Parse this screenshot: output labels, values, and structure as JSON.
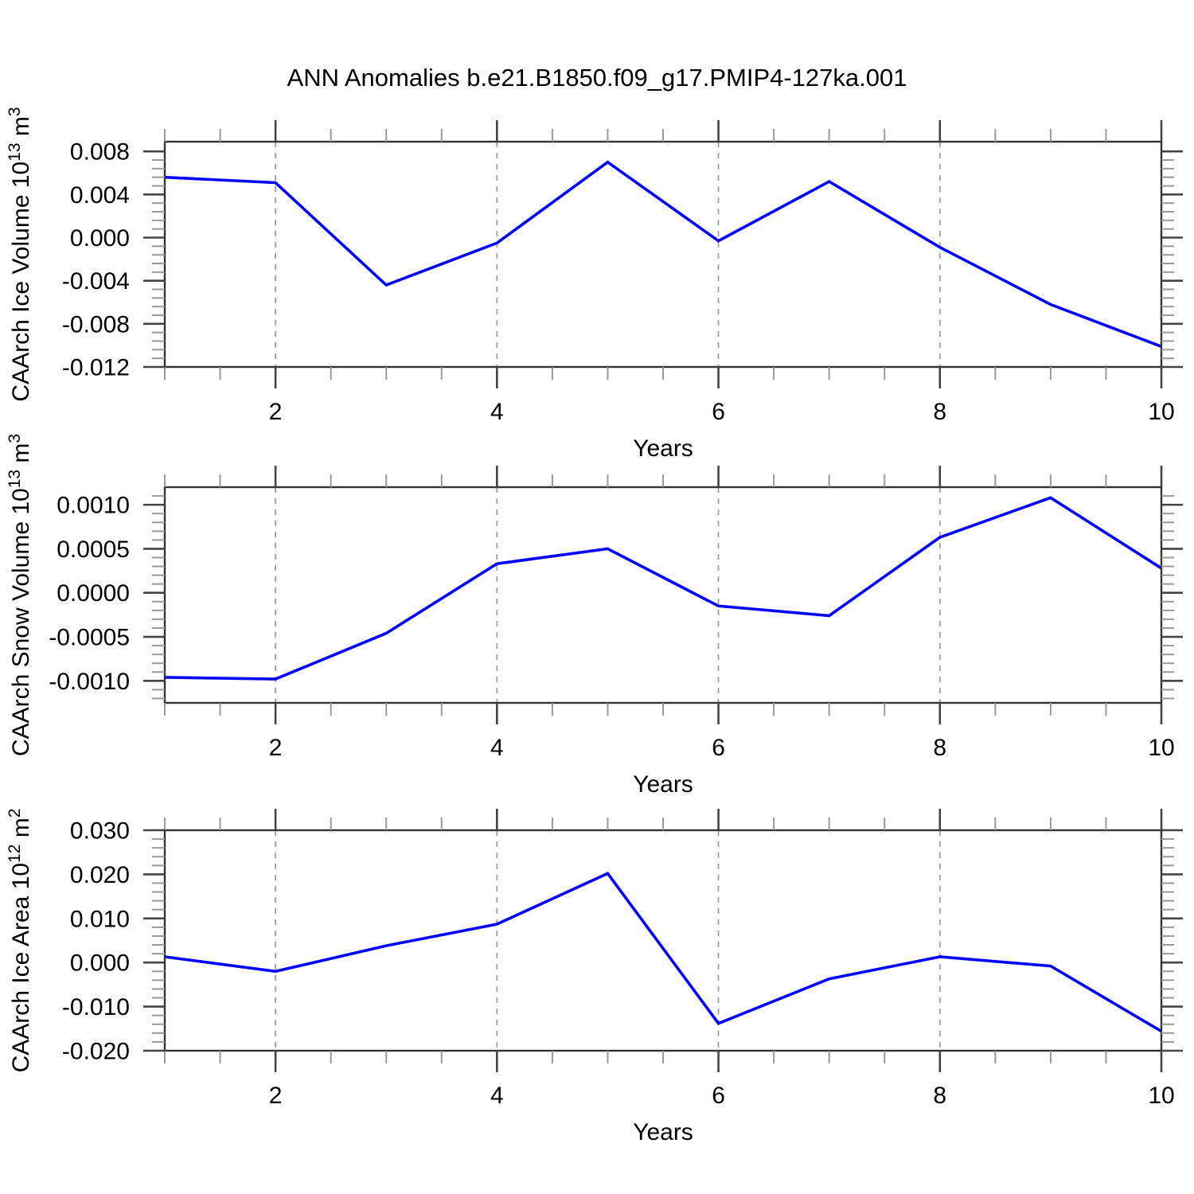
{
  "title": "ANN Anomalies b.e21.B1850.f09_g17.PMIP4-127ka.001",
  "colors": {
    "line": "#0000ff",
    "border": "#333333",
    "tick_major": "#444444",
    "tick_minor": "#999999",
    "grid": "#999999",
    "text": "#000000"
  },
  "chart_data": [
    {
      "type": "line",
      "name": "panel-ice-volume",
      "ylabel": "CAArch Ice Volume 10¹³ m³",
      "ylabel_parts": [
        {
          "text": "CAArch Ice Volume 10"
        },
        {
          "text": "13",
          "sup": true
        },
        {
          "text": " m"
        },
        {
          "text": "3",
          "sup": true
        }
      ],
      "xlabel": "Years",
      "x": [
        1,
        2,
        3,
        4,
        5,
        6,
        7,
        8,
        9,
        10
      ],
      "values": [
        0.0056,
        0.0051,
        -0.0044,
        -0.0005,
        0.007,
        -0.0003,
        0.0052,
        -0.0009,
        -0.0062,
        -0.0101
      ],
      "xlim": [
        1,
        10
      ],
      "ylim": [
        -0.012,
        0.0089
      ],
      "xticks": [
        {
          "v": 2,
          "label": "2"
        },
        {
          "v": 4,
          "label": "4"
        },
        {
          "v": 6,
          "label": "6"
        },
        {
          "v": 8,
          "label": "8"
        },
        {
          "v": 10,
          "label": "10"
        }
      ],
      "xminor_step": 0.5,
      "grid_x": [
        2,
        4,
        6,
        8
      ],
      "yticks": [
        {
          "v": 0.008,
          "label": "0.008"
        },
        {
          "v": 0.004,
          "label": "0.004"
        },
        {
          "v": 0.0,
          "label": "0.000"
        },
        {
          "v": -0.004,
          "label": "-0.004"
        },
        {
          "v": -0.008,
          "label": "-0.008"
        },
        {
          "v": -0.012,
          "label": "-0.012"
        }
      ],
      "yminor_step": 0.0008
    },
    {
      "type": "line",
      "name": "panel-snow-volume",
      "ylabel": "CAArch Snow Volume 10¹³ m³",
      "ylabel_parts": [
        {
          "text": "CAArch Snow Volume 10"
        },
        {
          "text": "13",
          "sup": true
        },
        {
          "text": " m"
        },
        {
          "text": "3",
          "sup": true
        }
      ],
      "xlabel": "Years",
      "x": [
        1,
        2,
        3,
        4,
        5,
        6,
        7,
        8,
        9,
        10
      ],
      "values": [
        -0.00096,
        -0.00098,
        -0.00046,
        0.00033,
        0.0005,
        -0.00015,
        -0.00026,
        0.00063,
        0.00108,
        0.00028
      ],
      "xlim": [
        1,
        10
      ],
      "ylim": [
        -0.00125,
        0.0012
      ],
      "xticks": [
        {
          "v": 2,
          "label": "2"
        },
        {
          "v": 4,
          "label": "4"
        },
        {
          "v": 6,
          "label": "6"
        },
        {
          "v": 8,
          "label": "8"
        },
        {
          "v": 10,
          "label": "10"
        }
      ],
      "xminor_step": 0.5,
      "grid_x": [
        2,
        4,
        6,
        8
      ],
      "yticks": [
        {
          "v": 0.001,
          "label": "0.0010"
        },
        {
          "v": 0.0005,
          "label": "0.0005"
        },
        {
          "v": 0.0,
          "label": "0.0000"
        },
        {
          "v": -0.0005,
          "label": "-0.0005"
        },
        {
          "v": -0.001,
          "label": "-0.0010"
        }
      ],
      "yminor_step": 0.0001
    },
    {
      "type": "line",
      "name": "panel-ice-area",
      "ylabel": "CAArch Ice Area 10¹² m²",
      "ylabel_parts": [
        {
          "text": "CAArch Ice Area 10"
        },
        {
          "text": "12",
          "sup": true
        },
        {
          "text": " m"
        },
        {
          "text": "2",
          "sup": true
        }
      ],
      "xlabel": "Years",
      "x": [
        1,
        2,
        3,
        4,
        5,
        6,
        7,
        8,
        9,
        10
      ],
      "values": [
        0.0013,
        -0.002,
        0.0038,
        0.0087,
        0.0202,
        -0.0138,
        -0.0037,
        0.0013,
        -0.0008,
        -0.0156
      ],
      "xlim": [
        1,
        10
      ],
      "ylim": [
        -0.02,
        0.03
      ],
      "xticks": [
        {
          "v": 2,
          "label": "2"
        },
        {
          "v": 4,
          "label": "4"
        },
        {
          "v": 6,
          "label": "6"
        },
        {
          "v": 8,
          "label": "8"
        },
        {
          "v": 10,
          "label": "10"
        }
      ],
      "xminor_step": 0.5,
      "grid_x": [
        2,
        4,
        6,
        8
      ],
      "yticks": [
        {
          "v": 0.03,
          "label": "0.030"
        },
        {
          "v": 0.02,
          "label": "0.020"
        },
        {
          "v": 0.01,
          "label": "0.010"
        },
        {
          "v": 0.0,
          "label": "0.000"
        },
        {
          "v": -0.01,
          "label": "-0.010"
        },
        {
          "v": -0.02,
          "label": "-0.020"
        }
      ],
      "yminor_step": 0.002
    }
  ]
}
